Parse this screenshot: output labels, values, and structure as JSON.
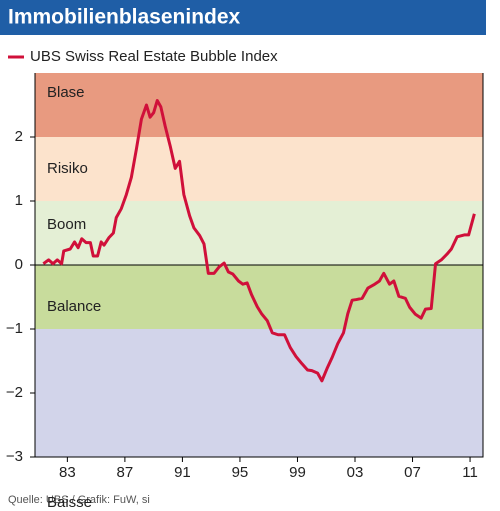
{
  "chart_data": {
    "type": "line",
    "title": "Immobilienblasenindex",
    "source": "Quelle: UBS / Grafik: FuW, si",
    "bands": [
      {
        "label": "Blase",
        "from": 2,
        "to": 3,
        "color": "#e89a80"
      },
      {
        "label": "Risiko",
        "from": 1,
        "to": 2,
        "color": "#fce3cc"
      },
      {
        "label": "Boom",
        "from": 0,
        "to": 1,
        "color": "#e4efd5"
      },
      {
        "label": "Balance",
        "from": -1,
        "to": 0,
        "color": "#c8dc9c"
      },
      {
        "label": "Baisse",
        "from": -3,
        "to": -1,
        "color": "#d2d4ea"
      }
    ],
    "x": [
      1981.33,
      1981.7,
      1982.0,
      1982.3,
      1982.6,
      1982.75,
      1983.2,
      1983.5,
      1983.75,
      1984.0,
      1984.3,
      1984.6,
      1984.8,
      1985.1,
      1985.35,
      1985.55,
      1985.9,
      1986.2,
      1986.4,
      1986.75,
      1987.1,
      1987.45,
      1987.8,
      1988.15,
      1988.5,
      1988.75,
      1989.0,
      1989.25,
      1989.5,
      1989.8,
      1990.15,
      1990.5,
      1990.8,
      1991.1,
      1991.5,
      1991.8,
      1992.2,
      1992.5,
      1992.8,
      1993.2,
      1993.55,
      1993.9,
      1994.2,
      1994.5,
      1994.9,
      1995.2,
      1995.5,
      1995.8,
      1996.2,
      1996.5,
      1996.9,
      1997.25,
      1997.65,
      1998.1,
      1998.5,
      1998.9,
      1999.3,
      1999.7,
      2000.0,
      2000.4,
      2000.7,
      2001.05,
      2001.4,
      2001.8,
      2002.2,
      2002.5,
      2002.8,
      2003.1,
      2003.5,
      2003.9,
      2004.3,
      2004.7,
      2005.0,
      2005.4,
      2005.7,
      2006.05,
      2006.5,
      2006.8,
      2007.2,
      2007.6,
      2007.9,
      2008.3,
      2008.6,
      2009.0,
      2009.4,
      2009.7,
      2010.1,
      2010.6,
      2010.9,
      2011.3
    ],
    "series": [
      {
        "name": "UBS Swiss Real Estate Bubble Index",
        "color": "#d0103a",
        "values": [
          0.02,
          0.08,
          0.02,
          0.08,
          0.02,
          0.22,
          0.25,
          0.36,
          0.27,
          0.41,
          0.35,
          0.35,
          0.14,
          0.14,
          0.36,
          0.31,
          0.43,
          0.5,
          0.74,
          0.88,
          1.1,
          1.37,
          1.81,
          2.28,
          2.5,
          2.31,
          2.38,
          2.57,
          2.47,
          2.17,
          1.86,
          1.51,
          1.62,
          1.1,
          0.77,
          0.58,
          0.46,
          0.33,
          -0.13,
          -0.13,
          -0.03,
          0.03,
          -0.11,
          -0.14,
          -0.25,
          -0.3,
          -0.28,
          -0.46,
          -0.65,
          -0.76,
          -0.87,
          -1.06,
          -1.09,
          -1.09,
          -1.29,
          -1.43,
          -1.54,
          -1.64,
          -1.65,
          -1.69,
          -1.81,
          -1.62,
          -1.45,
          -1.23,
          -1.06,
          -0.76,
          -0.55,
          -0.54,
          -0.52,
          -0.36,
          -0.31,
          -0.25,
          -0.13,
          -0.3,
          -0.25,
          -0.49,
          -0.52,
          -0.66,
          -0.77,
          -0.83,
          -0.69,
          -0.68,
          0.02,
          0.08,
          0.17,
          0.25,
          0.44,
          0.47,
          0.47,
          0.8
        ]
      }
    ],
    "xlim": [
      1980.75,
      2011.9
    ],
    "xticks": [
      {
        "value": 1983,
        "label": "83"
      },
      {
        "value": 1987,
        "label": "87"
      },
      {
        "value": 1991,
        "label": "91"
      },
      {
        "value": 1995,
        "label": "95"
      },
      {
        "value": 1999,
        "label": "99"
      },
      {
        "value": 2003,
        "label": "03"
      },
      {
        "value": 2007,
        "label": "07"
      },
      {
        "value": 2011,
        "label": "11"
      }
    ],
    "ylim": [
      -3,
      3
    ],
    "yticks": [
      2,
      1,
      0,
      {
        "value": -1,
        "label": "−1"
      },
      {
        "value": -2,
        "label": "−2"
      },
      {
        "value": -3,
        "label": "−3"
      }
    ],
    "grid": false
  }
}
